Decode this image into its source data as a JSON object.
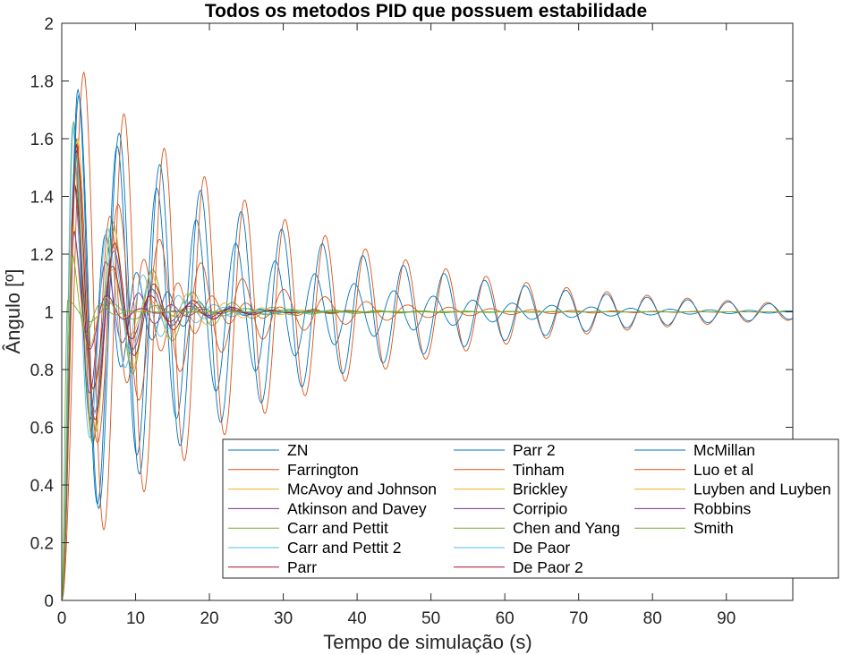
{
  "chart_data": {
    "type": "line",
    "title": "Todos os metodos PID que possuem estabilidade",
    "xlabel": "Tempo de simulação (s)",
    "ylabel": "Ângulo [º]",
    "xlim": [
      0,
      99
    ],
    "ylim": [
      0,
      2
    ],
    "xticks": [
      0,
      10,
      20,
      30,
      40,
      50,
      60,
      70,
      80,
      90
    ],
    "yticks": [
      0,
      0.2,
      0.4,
      0.6,
      0.8,
      1,
      1.2,
      1.4,
      1.6,
      1.8,
      2
    ],
    "grid": false,
    "legend_position": "bottom-right",
    "legend_columns": 3,
    "series": [
      {
        "name": "ZN",
        "color": "#0072BD",
        "peak": 1.52,
        "peak_time": 1.8,
        "period": 4.2,
        "decay": 0.16
      },
      {
        "name": "Farrington",
        "color": "#D95319",
        "peak": 1.6,
        "peak_time": 2.0,
        "period": 4.6,
        "decay": 0.13
      },
      {
        "name": "McAvoy and Johnson",
        "color": "#EDB120",
        "peak": 1.5,
        "peak_time": 2.0,
        "period": 5.0,
        "decay": 0.25
      },
      {
        "name": "Atkinson and Davey",
        "color": "#7E2F8E",
        "peak": 1.45,
        "peak_time": 1.7,
        "period": 4.4,
        "decay": 0.22
      },
      {
        "name": "Carr and Pettit",
        "color": "#77AC30",
        "peak": 1.66,
        "peak_time": 1.6,
        "period": 5.4,
        "decay": 0.14
      },
      {
        "name": "Carr and Pettit 2",
        "color": "#4DBEEE",
        "peak": 1.65,
        "peak_time": 1.5,
        "period": 4.8,
        "decay": 0.17
      },
      {
        "name": "Parr",
        "color": "#A2142F",
        "peak": 1.44,
        "peak_time": 1.8,
        "period": 5.2,
        "decay": 0.2
      },
      {
        "name": "Parr 2",
        "color": "#0072BD",
        "peak": 1.77,
        "peak_time": 2.2,
        "period": 5.35,
        "decay": 0.055
      },
      {
        "name": "Tinham",
        "color": "#D95319",
        "peak": 1.83,
        "peak_time": 3.0,
        "period": 5.45,
        "decay": 0.035
      },
      {
        "name": "Brickley",
        "color": "#EDB120",
        "peak": 1.6,
        "peak_time": 2.2,
        "period": 5.0,
        "decay": 0.15
      },
      {
        "name": "Corripio",
        "color": "#7E2F8E",
        "peak": 1.56,
        "peak_time": 2.0,
        "period": 5.2,
        "decay": 0.19
      },
      {
        "name": "Chen and Yang",
        "color": "#77AC30",
        "peak": 1.04,
        "peak_time": 0.8,
        "period": 6.0,
        "decay": 0.05
      },
      {
        "name": "De Paor",
        "color": "#4DBEEE",
        "peak": 1.55,
        "peak_time": 2.0,
        "period": 5.0,
        "decay": 0.18
      },
      {
        "name": "De Paor 2",
        "color": "#A2142F",
        "peak": 1.58,
        "peak_time": 2.0,
        "period": 5.3,
        "decay": 0.17
      },
      {
        "name": "McMillan",
        "color": "#0072BD",
        "peak": 1.75,
        "peak_time": 2.3,
        "period": 5.5,
        "decay": 0.035
      },
      {
        "name": "Luo et al",
        "color": "#D95319",
        "peak": 1.55,
        "peak_time": 2.1,
        "period": 5.6,
        "decay": 0.07
      },
      {
        "name": "Luyben and Luyben",
        "color": "#EDB120",
        "peak": 1.3,
        "peak_time": 1.6,
        "period": 4.6,
        "decay": 0.4
      },
      {
        "name": "Robbins",
        "color": "#7E2F8E",
        "peak": 1.28,
        "peak_time": 1.7,
        "period": 4.6,
        "decay": 0.35
      },
      {
        "name": "Smith",
        "color": "#77AC30",
        "peak": 1.2,
        "peak_time": 1.5,
        "period": 4.0,
        "decay": 0.5
      }
    ]
  }
}
